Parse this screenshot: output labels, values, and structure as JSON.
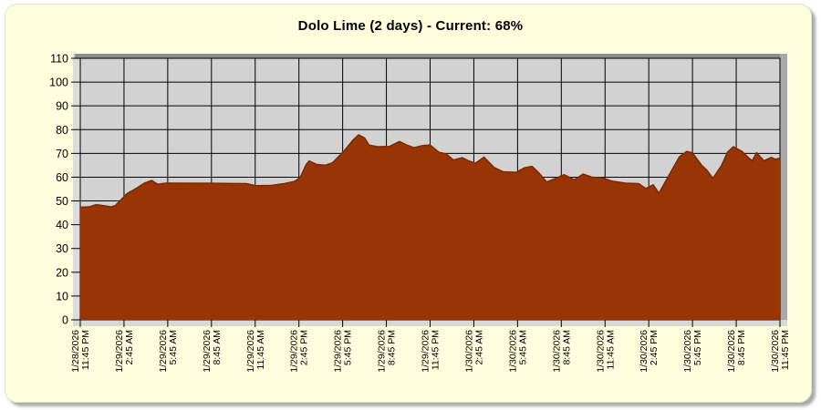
{
  "title": "Dolo Lime (2 days) - Current: 68%",
  "current_percent": 68,
  "colors": {
    "page_bg": "#FFFFFF",
    "card_bg": "#FFFFDD",
    "plot_bg": "#D2D2D2",
    "grid_line": "#000000",
    "frame_line": "#000000",
    "tick_label": "#000000",
    "area_fill": "#993404",
    "area_stroke": "#7C2B04",
    "wall_left": "#DCDCDC",
    "wall_bottom": "#D8D8D8",
    "wall_top": "#8C8C8C",
    "wall_right": "#A8A8A8"
  },
  "chart_data": {
    "type": "area",
    "title": "Dolo Lime (2 days) - Current: 68%",
    "series_name": "Dolo Lime",
    "ylim": [
      0,
      110
    ],
    "ytick_step": 10,
    "x_hours_span": 48,
    "grid": true,
    "legend_position": "none",
    "x_labels": [
      [
        "1/28/2026",
        "11:45 PM"
      ],
      [
        "1/29/2026",
        "2:45 AM"
      ],
      [
        "1/29/2026",
        "5:45 AM"
      ],
      [
        "1/29/2026",
        "8:45 AM"
      ],
      [
        "1/29/2026",
        "11:45 AM"
      ],
      [
        "1/29/2026",
        "2:45 PM"
      ],
      [
        "1/29/2026",
        "5:45 PM"
      ],
      [
        "1/29/2026",
        "8:45 PM"
      ],
      [
        "1/29/2026",
        "11:45 PM"
      ],
      [
        "1/30/2026",
        "2:45 AM"
      ],
      [
        "1/30/2026",
        "5:45 AM"
      ],
      [
        "1/30/2026",
        "8:45 AM"
      ],
      [
        "1/30/2026",
        "11:45 AM"
      ],
      [
        "1/30/2026",
        "2:45 PM"
      ],
      [
        "1/30/2026",
        "5:45 PM"
      ],
      [
        "1/30/2026",
        "8:45 PM"
      ],
      [
        "1/30/2026",
        "11:45 PM"
      ]
    ],
    "series": [
      {
        "name": "Dolo Lime",
        "x_hours": [
          0,
          0.6,
          1.1,
          1.6,
          2.1,
          2.4,
          3.2,
          3.9,
          4.4,
          4.9,
          5.3,
          5.9,
          9.0,
          11.4,
          12.0,
          13.1,
          14.0,
          14.7,
          15.1,
          15.5,
          15.7,
          16.2,
          16.8,
          17.3,
          18.1,
          18.7,
          19.1,
          19.5,
          19.8,
          20.4,
          21.2,
          21.9,
          22.4,
          22.9,
          23.5,
          24.0,
          24.6,
          25.1,
          25.6,
          26.2,
          26.6,
          27.1,
          27.7,
          28.4,
          29.0,
          29.9,
          30.5,
          31.0,
          31.5,
          32.0,
          32.6,
          33.2,
          33.9,
          34.5,
          35.1,
          35.8,
          36.5,
          37.4,
          38.3,
          38.8,
          39.3,
          39.7,
          40.5,
          41.1,
          41.6,
          42.0,
          42.6,
          43.0,
          43.4,
          44.0,
          44.4,
          44.8,
          45.4,
          45.8,
          46.1,
          46.4,
          46.9,
          47.4,
          47.7,
          48
        ],
        "values": [
          47.3,
          47.5,
          48.4,
          48.0,
          47.5,
          48.0,
          53.0,
          55.5,
          57.5,
          58.6,
          57.0,
          57.5,
          57.4,
          57.3,
          56.4,
          56.5,
          57.3,
          58.2,
          60.0,
          65.3,
          66.8,
          65.4,
          65.0,
          66.0,
          71.0,
          75.5,
          77.8,
          76.5,
          73.5,
          72.8,
          72.9,
          75.0,
          73.5,
          72.4,
          73.3,
          73.5,
          70.5,
          69.8,
          67.2,
          68.2,
          67.0,
          65.8,
          68.4,
          64.0,
          62.3,
          62.0,
          64.0,
          64.5,
          61.5,
          57.9,
          59.5,
          61.0,
          58.9,
          61.3,
          60.0,
          59.7,
          58.3,
          57.5,
          57.3,
          55.2,
          56.8,
          53.2,
          62.0,
          68.5,
          70.8,
          70.2,
          65.2,
          62.8,
          59.5,
          65.0,
          70.5,
          72.8,
          70.8,
          68.4,
          66.9,
          70.3,
          66.9,
          68.3,
          67.5,
          68.0
        ]
      }
    ]
  }
}
